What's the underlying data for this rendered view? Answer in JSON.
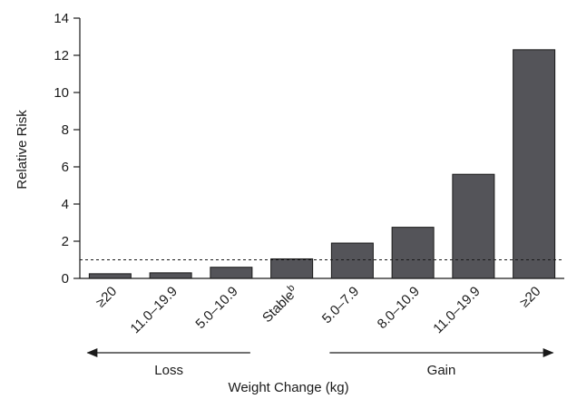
{
  "chart_data": {
    "type": "bar",
    "categories": [
      "≥20",
      "11.0–19.9",
      "5.0–10.9",
      "Stable",
      "5.0–7.9",
      "8.0–10.9",
      "11.0–19.9",
      "≥20"
    ],
    "category_superscripts": [
      "",
      "",
      "",
      "b",
      "",
      "",
      "",
      ""
    ],
    "values": [
      0.25,
      0.3,
      0.6,
      1.05,
      1.9,
      2.75,
      5.6,
      12.3
    ],
    "xlabel": "Weight Change (kg)",
    "ylabel": "Relative Risk",
    "ylim": [
      0,
      14
    ],
    "yticks": [
      0,
      2,
      4,
      6,
      8,
      10,
      12,
      14
    ],
    "reference_line": 1.0,
    "groups": [
      {
        "label": "Loss",
        "from_category": 0,
        "to_category": 2,
        "direction": "left"
      },
      {
        "label": "Gain",
        "from_category": 4,
        "to_category": 7,
        "direction": "right"
      }
    ],
    "grid": false,
    "bar_color": "#545459"
  }
}
